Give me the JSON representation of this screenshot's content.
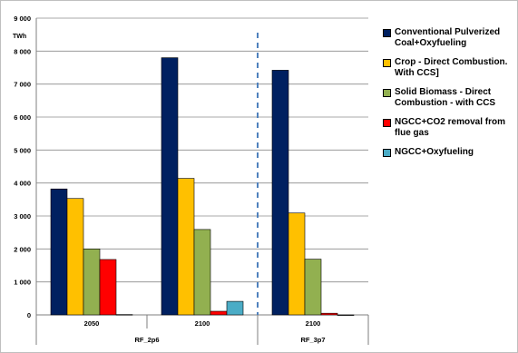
{
  "chart_data": {
    "type": "bar",
    "unit": "TWh",
    "ylim": [
      0,
      9000
    ],
    "yticks": [
      0,
      1000,
      2000,
      3000,
      4000,
      5000,
      6000,
      7000,
      8000,
      9000
    ],
    "ytick_labels": [
      "0",
      "1 000",
      "2 000",
      "3 000",
      "4 000",
      "5 000",
      "6 000",
      "7 000",
      "8 000",
      "9 000"
    ],
    "categories": [
      "2050",
      "2100",
      "2100"
    ],
    "groups": [
      {
        "label": "RF_2p6",
        "categories": [
          0,
          1
        ]
      },
      {
        "label": "RF_3p7",
        "categories": [
          2
        ]
      }
    ],
    "series": [
      {
        "name": "Conventional Pulverized Coal+Oxyfueling",
        "color": "#002060",
        "values": [
          3820,
          7800,
          7420
        ]
      },
      {
        "name": "Crop - Direct Combustion. With CCS]",
        "color": "#FFC000",
        "values": [
          3530,
          4140,
          3090
        ]
      },
      {
        "name": "Solid Biomass - Direct Combustion - with CCS",
        "color": "#92B050",
        "values": [
          2000,
          2590,
          1690
        ]
      },
      {
        "name": "NGCC+CO2 removal from flue gas",
        "color": "#FF0000",
        "values": [
          1680,
          110,
          50
        ]
      },
      {
        "name": "NGCC+Oxyfueling",
        "color": "#4BACC6",
        "values": [
          10,
          410,
          0
        ]
      }
    ],
    "grid": true,
    "legend_position": "right",
    "divider_after_category": 1
  }
}
